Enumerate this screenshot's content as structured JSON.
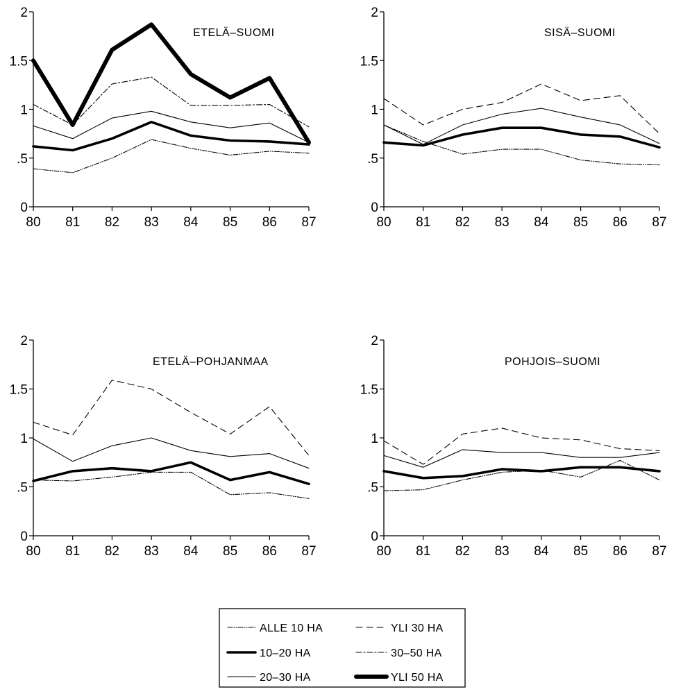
{
  "legend_title": "",
  "styles": {
    "alle10": {
      "stroke": "#000000",
      "dash": "7 2 1 2 1 2",
      "width": 1.1
    },
    "t10_20": {
      "stroke": "#000000",
      "dash": "",
      "width": 3.6
    },
    "t20_30": {
      "stroke": "#000000",
      "dash": "",
      "width": 1.1
    },
    "yli30": {
      "stroke": "#000000",
      "dash": "9 6",
      "width": 1.1
    },
    "t30_50": {
      "stroke": "#000000",
      "dash": "8 3 2 3",
      "width": 1.1
    },
    "yli50": {
      "stroke": "#000000",
      "dash": "",
      "width": 6
    }
  },
  "legend": [
    {
      "key": "alle10",
      "label": "ALLE 10 HA"
    },
    {
      "key": "yli30",
      "label": "YLI 30 HA"
    },
    {
      "key": "t10_20",
      "label": "10–20 HA"
    },
    {
      "key": "t30_50",
      "label": "30–50 HA"
    },
    {
      "key": "t20_30",
      "label": "20–30 HA"
    },
    {
      "key": "yli50",
      "label": "YLI 50 HA"
    }
  ],
  "chart_data": [
    {
      "type": "line",
      "title": "ETELÄ–SUOMI",
      "x": [
        80,
        81,
        82,
        83,
        84,
        85,
        86,
        87
      ],
      "x_tick_labels": [
        "80",
        "81",
        "82",
        "83",
        "84",
        "85",
        "86",
        "87"
      ],
      "y_ticks": [
        0,
        0.5,
        1,
        1.5,
        2
      ],
      "y_tick_labels": [
        "0",
        ".5",
        "1",
        "1.5",
        "2"
      ],
      "ylim": [
        0,
        2
      ],
      "xlabel": "",
      "ylabel": "",
      "series": [
        {
          "key": "alle10",
          "values": [
            0.39,
            0.35,
            0.5,
            0.69,
            0.6,
            0.53,
            0.57,
            0.55
          ]
        },
        {
          "key": "t10_20",
          "values": [
            0.62,
            0.58,
            0.7,
            0.87,
            0.73,
            0.68,
            0.67,
            0.64
          ]
        },
        {
          "key": "t20_30",
          "values": [
            0.83,
            0.7,
            0.91,
            0.98,
            0.87,
            0.81,
            0.86,
            0.66
          ]
        },
        {
          "key": "t30_50",
          "values": [
            1.05,
            0.84,
            1.26,
            1.33,
            1.04,
            1.04,
            1.05,
            0.82
          ]
        },
        {
          "key": "yli50",
          "values": [
            1.5,
            0.84,
            1.61,
            1.87,
            1.36,
            1.12,
            1.32,
            0.66
          ]
        }
      ]
    },
    {
      "type": "line",
      "title": "SISÄ–SUOMI",
      "x": [
        80,
        81,
        82,
        83,
        84,
        85,
        86,
        87
      ],
      "x_tick_labels": [
        "80",
        "81",
        "82",
        "83",
        "84",
        "85",
        "86",
        "87"
      ],
      "y_ticks": [
        0,
        0.5,
        1,
        1.5,
        2
      ],
      "y_tick_labels": [
        "0",
        ".5",
        "1",
        "1.5",
        "2"
      ],
      "ylim": [
        0,
        2
      ],
      "xlabel": "",
      "ylabel": "",
      "series": [
        {
          "key": "alle10",
          "values": [
            0.84,
            0.67,
            0.54,
            0.59,
            0.59,
            0.48,
            0.44,
            0.43
          ]
        },
        {
          "key": "t10_20",
          "values": [
            0.66,
            0.63,
            0.74,
            0.81,
            0.81,
            0.74,
            0.72,
            0.61
          ]
        },
        {
          "key": "t20_30",
          "values": [
            0.84,
            0.64,
            0.84,
            0.95,
            1.01,
            0.92,
            0.84,
            0.65
          ]
        },
        {
          "key": "yli30",
          "values": [
            1.11,
            0.84,
            1.0,
            1.07,
            1.26,
            1.09,
            1.14,
            0.75
          ]
        }
      ]
    },
    {
      "type": "line",
      "title": "ETELÄ–POHJANMAA",
      "x": [
        80,
        81,
        82,
        83,
        84,
        85,
        86,
        87
      ],
      "x_tick_labels": [
        "80",
        "81",
        "82",
        "83",
        "84",
        "85",
        "86",
        "87"
      ],
      "y_ticks": [
        0,
        0.5,
        1,
        1.5,
        2
      ],
      "y_tick_labels": [
        "0",
        ".5",
        "1",
        "1.5",
        "2"
      ],
      "ylim": [
        0,
        2
      ],
      "xlabel": "",
      "ylabel": "",
      "series": [
        {
          "key": "alle10",
          "values": [
            0.57,
            0.56,
            0.6,
            0.65,
            0.65,
            0.42,
            0.44,
            0.38
          ]
        },
        {
          "key": "t10_20",
          "values": [
            0.56,
            0.66,
            0.69,
            0.66,
            0.75,
            0.57,
            0.65,
            0.53
          ]
        },
        {
          "key": "t20_30",
          "values": [
            0.99,
            0.76,
            0.92,
            1.0,
            0.87,
            0.81,
            0.84,
            0.69
          ]
        },
        {
          "key": "yli30",
          "values": [
            1.16,
            1.03,
            1.59,
            1.5,
            1.26,
            1.04,
            1.32,
            0.82
          ]
        }
      ]
    },
    {
      "type": "line",
      "title": "POHJOIS–SUOMI",
      "x": [
        80,
        81,
        82,
        83,
        84,
        85,
        86,
        87
      ],
      "x_tick_labels": [
        "80",
        "81",
        "82",
        "83",
        "84",
        "85",
        "86",
        "87"
      ],
      "y_ticks": [
        0,
        0.5,
        1,
        1.5,
        2
      ],
      "y_tick_labels": [
        "0",
        ".5",
        "1",
        "1.5",
        "2"
      ],
      "ylim": [
        0,
        2
      ],
      "xlabel": "",
      "ylabel": "",
      "series": [
        {
          "key": "alle10",
          "values": [
            0.46,
            0.47,
            0.57,
            0.65,
            0.67,
            0.6,
            0.77,
            0.57
          ]
        },
        {
          "key": "t10_20",
          "values": [
            0.66,
            0.59,
            0.61,
            0.68,
            0.66,
            0.7,
            0.7,
            0.66
          ]
        },
        {
          "key": "t20_30",
          "values": [
            0.82,
            0.7,
            0.88,
            0.85,
            0.85,
            0.8,
            0.8,
            0.85
          ]
        },
        {
          "key": "yli30",
          "values": [
            0.97,
            0.73,
            1.04,
            1.1,
            1.0,
            0.98,
            0.89,
            0.87
          ]
        }
      ]
    }
  ]
}
